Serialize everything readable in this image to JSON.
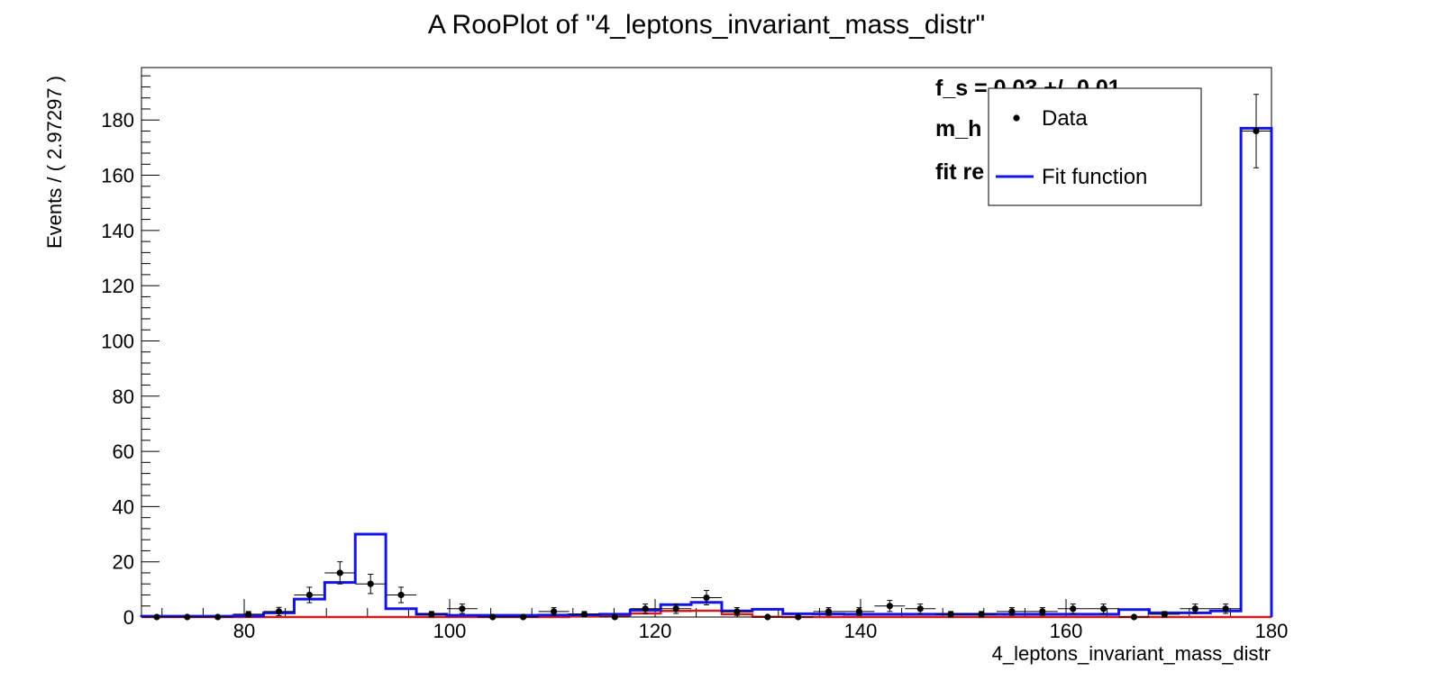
{
  "chart_data": {
    "type": "histogram",
    "title": "A RooPlot of \"4_leptons_invariant_mass_distr\"",
    "xlabel": "4_leptons_invariant_mass_distr",
    "ylabel": "Events / ( 2.97297 )",
    "xlim": [
      70,
      180
    ],
    "ylim": [
      0,
      199
    ],
    "x_ticks": [
      80,
      100,
      120,
      140,
      160,
      180
    ],
    "y_ticks": [
      0,
      20,
      40,
      60,
      80,
      100,
      120,
      140,
      160,
      180
    ],
    "bin_width": 2.97297,
    "data_points": {
      "name": "Data",
      "x": [
        71.49,
        74.46,
        77.43,
        80.41,
        83.38,
        86.35,
        89.32,
        92.3,
        95.27,
        98.24,
        101.22,
        104.19,
        107.16,
        110.14,
        113.11,
        116.08,
        119.05,
        122.03,
        125.0,
        127.97,
        130.95,
        133.92,
        136.89,
        139.86,
        142.84,
        145.81,
        148.78,
        151.76,
        154.73,
        157.7,
        160.68,
        163.65,
        166.62,
        169.59,
        172.57,
        175.54,
        178.51
      ],
      "y": [
        0,
        0,
        0,
        1,
        2,
        8,
        16,
        12,
        8,
        1,
        3,
        0,
        0,
        2,
        1,
        0,
        3,
        3,
        7,
        2,
        0,
        0,
        2,
        2,
        4,
        3,
        1,
        1,
        2,
        2,
        3,
        3,
        0,
        1,
        3,
        3,
        176
      ],
      "y_err": [
        0,
        0,
        0,
        1,
        1.5,
        2.8,
        4.0,
        3.5,
        2.8,
        1,
        1.7,
        0,
        0,
        1.4,
        1,
        0,
        1.7,
        1.7,
        2.6,
        1.4,
        0,
        0,
        1.4,
        1.4,
        2.0,
        1.7,
        1,
        1,
        1.4,
        1.4,
        1.7,
        1.7,
        0,
        1,
        1.7,
        1.7,
        13.3
      ]
    },
    "series": [
      {
        "name": "Fit function",
        "color": "#1414e6",
        "values": [
          0.3,
          0.3,
          0.3,
          0.4,
          1.5,
          6.5,
          12.5,
          30,
          3,
          1,
          0.6,
          0.6,
          0.6,
          0.7,
          0.8,
          1.0,
          2.5,
          4.5,
          5.3,
          2.2,
          2.8,
          1.2,
          1.1,
          1.0,
          1.0,
          1.0,
          1.0,
          1.0,
          1.0,
          1.0,
          1.0,
          1.0,
          2.7,
          1.5,
          1.5,
          2.2,
          177
        ]
      },
      {
        "color": "#cc1f1f",
        "values": [
          0,
          0,
          0,
          0,
          0,
          0,
          0,
          0,
          0,
          0,
          0,
          0,
          0,
          0,
          0.2,
          0.3,
          1.3,
          2.2,
          2.3,
          1.0,
          0.1,
          0,
          0,
          0,
          0,
          0,
          0,
          0,
          0,
          0,
          0,
          0,
          0,
          0,
          0,
          0,
          0
        ]
      }
    ],
    "legend": {
      "placement": "top-right",
      "entries": [
        {
          "label": "Data",
          "marker": "point"
        },
        {
          "label": "Fit function",
          "marker": "line",
          "color": "#1414e6"
        }
      ]
    },
    "annotations": [
      "f_s = 0.03 +/- 0.01",
      "m_h",
      "fit re"
    ],
    "grid": false
  }
}
